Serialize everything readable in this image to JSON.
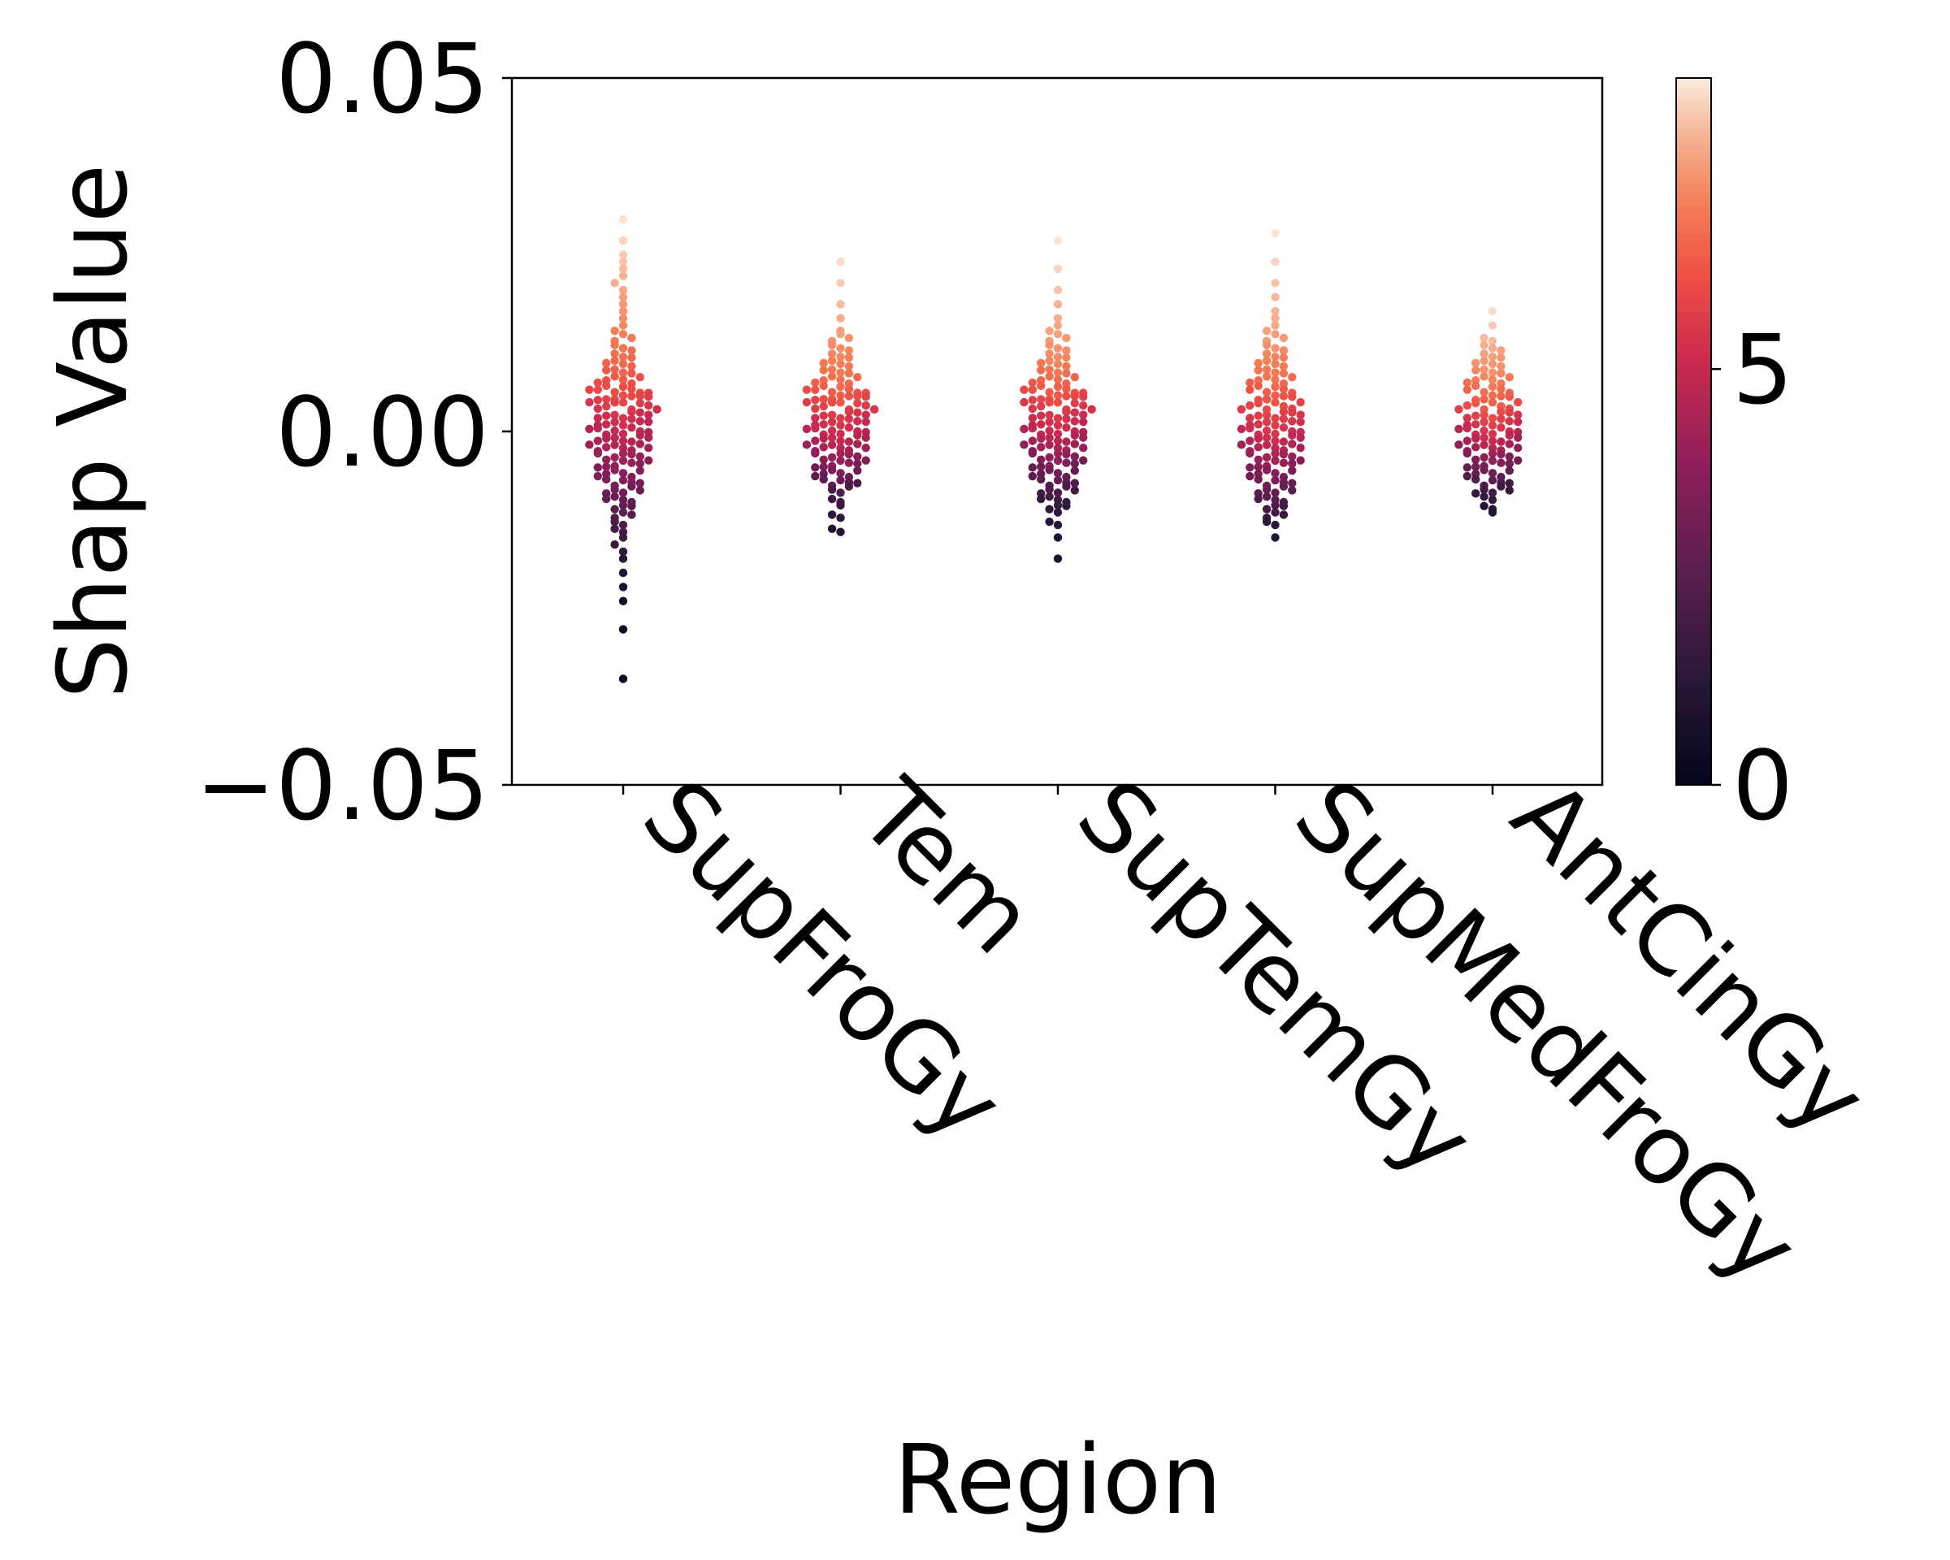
{
  "chart_data": {
    "type": "scatter",
    "style": "swarm",
    "xlabel": "Region",
    "ylabel": "Shap Value",
    "ylim": [
      -0.05,
      0.05
    ],
    "yticks": [
      "0.05",
      "0.00",
      "−0.05"
    ],
    "yticks_values": [
      0.05,
      0.0,
      -0.05
    ],
    "categories": [
      "SupFroGy",
      "Tem",
      "SupTemGy",
      "SupMedFroGy",
      "AntCinGy"
    ],
    "colorbar": {
      "cmap": "rocket",
      "min": 0,
      "max": 8.5,
      "ticks": [
        0,
        5
      ],
      "tick_labels": [
        "0",
        "5"
      ]
    },
    "grid": false,
    "legend": "none",
    "series": [
      {
        "category": "SupFroGy",
        "points": [
          [
            0.03,
            8.4
          ],
          [
            0.027,
            8.2
          ],
          [
            0.025,
            8.1
          ],
          [
            0.024,
            8.0
          ],
          [
            0.023,
            7.9
          ],
          [
            0.022,
            7.8
          ],
          [
            0.021,
            7.7
          ],
          [
            0.02,
            7.6
          ],
          [
            0.019,
            7.5
          ],
          [
            0.018,
            7.4
          ],
          [
            0.017,
            7.3
          ],
          [
            0.016,
            7.2
          ],
          [
            0.015,
            7.1
          ],
          [
            0.014,
            7.0
          ],
          [
            0.013,
            6.9
          ],
          [
            0.012,
            6.8
          ],
          [
            0.011,
            6.7
          ],
          [
            0.01,
            6.6
          ],
          [
            0.009,
            6.5
          ],
          [
            0.008,
            6.3
          ],
          [
            0.007,
            6.1
          ],
          [
            0.006,
            6.0
          ],
          [
            0.005,
            5.9
          ],
          [
            0.005,
            5.8
          ],
          [
            0.004,
            5.6
          ],
          [
            0.003,
            5.4
          ],
          [
            0.002,
            5.2
          ],
          [
            0.001,
            5.0
          ],
          [
            0.0,
            4.8
          ],
          [
            -0.001,
            4.6
          ],
          [
            -0.002,
            4.4
          ],
          [
            -0.003,
            4.2
          ],
          [
            -0.004,
            4.0
          ],
          [
            -0.005,
            3.8
          ],
          [
            -0.006,
            3.6
          ],
          [
            -0.007,
            3.4
          ],
          [
            -0.008,
            3.2
          ],
          [
            -0.009,
            3.0
          ],
          [
            -0.01,
            2.8
          ],
          [
            -0.011,
            2.6
          ],
          [
            -0.012,
            2.4
          ],
          [
            -0.013,
            2.2
          ],
          [
            -0.014,
            2.0
          ],
          [
            -0.015,
            1.8
          ],
          [
            -0.016,
            1.6
          ],
          [
            -0.017,
            1.4
          ],
          [
            -0.018,
            1.2
          ],
          [
            -0.02,
            1.0
          ],
          [
            -0.022,
            0.8
          ],
          [
            -0.024,
            0.6
          ],
          [
            -0.028,
            0.4
          ],
          [
            -0.035,
            0.2
          ]
        ]
      },
      {
        "category": "Tem",
        "points": [
          [
            0.024,
            8.3
          ],
          [
            0.021,
            8.1
          ],
          [
            0.018,
            7.9
          ],
          [
            0.016,
            7.7
          ],
          [
            0.014,
            7.5
          ],
          [
            0.013,
            7.3
          ],
          [
            0.012,
            7.2
          ],
          [
            0.011,
            7.1
          ],
          [
            0.01,
            7.0
          ],
          [
            0.009,
            6.9
          ],
          [
            0.008,
            6.8
          ],
          [
            0.007,
            6.6
          ],
          [
            0.006,
            6.4
          ],
          [
            0.005,
            6.2
          ],
          [
            0.005,
            6.0
          ],
          [
            0.004,
            5.8
          ],
          [
            0.003,
            5.6
          ],
          [
            0.002,
            5.4
          ],
          [
            0.001,
            5.2
          ],
          [
            0.0,
            5.0
          ],
          [
            -0.001,
            4.7
          ],
          [
            -0.002,
            4.4
          ],
          [
            -0.003,
            4.1
          ],
          [
            -0.004,
            3.8
          ],
          [
            -0.005,
            3.4
          ],
          [
            -0.006,
            3.0
          ],
          [
            -0.007,
            2.6
          ],
          [
            -0.008,
            2.2
          ],
          [
            -0.01,
            1.8
          ],
          [
            -0.012,
            1.4
          ],
          [
            -0.014,
            1.0
          ]
        ]
      },
      {
        "category": "SupTemGy",
        "points": [
          [
            0.027,
            8.4
          ],
          [
            0.023,
            8.2
          ],
          [
            0.02,
            8.0
          ],
          [
            0.018,
            7.8
          ],
          [
            0.016,
            7.7
          ],
          [
            0.015,
            7.6
          ],
          [
            0.014,
            7.5
          ],
          [
            0.013,
            7.4
          ],
          [
            0.012,
            7.3
          ],
          [
            0.011,
            7.2
          ],
          [
            0.01,
            7.1
          ],
          [
            0.009,
            6.9
          ],
          [
            0.008,
            6.7
          ],
          [
            0.007,
            6.5
          ],
          [
            0.006,
            6.3
          ],
          [
            0.005,
            6.1
          ],
          [
            0.005,
            5.9
          ],
          [
            0.004,
            5.7
          ],
          [
            0.003,
            5.5
          ],
          [
            0.002,
            5.3
          ],
          [
            0.001,
            5.1
          ],
          [
            0.0,
            4.8
          ],
          [
            -0.001,
            4.5
          ],
          [
            -0.002,
            4.2
          ],
          [
            -0.003,
            3.9
          ],
          [
            -0.004,
            3.5
          ],
          [
            -0.005,
            3.1
          ],
          [
            -0.006,
            2.8
          ],
          [
            -0.007,
            2.5
          ],
          [
            -0.008,
            2.2
          ],
          [
            -0.009,
            1.9
          ],
          [
            -0.01,
            1.6
          ],
          [
            -0.011,
            1.4
          ],
          [
            -0.013,
            1.2
          ],
          [
            -0.015,
            1.0
          ],
          [
            -0.018,
            0.8
          ]
        ]
      },
      {
        "category": "SupMedFroGy",
        "points": [
          [
            0.028,
            8.4
          ],
          [
            0.024,
            8.2
          ],
          [
            0.021,
            8.0
          ],
          [
            0.019,
            7.9
          ],
          [
            0.017,
            7.8
          ],
          [
            0.016,
            7.7
          ],
          [
            0.015,
            7.6
          ],
          [
            0.014,
            7.5
          ],
          [
            0.013,
            7.4
          ],
          [
            0.012,
            7.3
          ],
          [
            0.011,
            7.1
          ],
          [
            0.01,
            7.0
          ],
          [
            0.009,
            6.9
          ],
          [
            0.008,
            6.8
          ],
          [
            0.007,
            6.6
          ],
          [
            0.006,
            6.4
          ],
          [
            0.005,
            6.2
          ],
          [
            0.004,
            6.0
          ],
          [
            0.003,
            5.8
          ],
          [
            0.002,
            5.6
          ],
          [
            0.001,
            5.4
          ],
          [
            0.0,
            5.2
          ],
          [
            -0.001,
            4.9
          ],
          [
            -0.002,
            4.6
          ],
          [
            -0.003,
            4.3
          ],
          [
            -0.004,
            4.0
          ],
          [
            -0.005,
            3.7
          ],
          [
            -0.006,
            3.4
          ],
          [
            -0.007,
            3.1
          ],
          [
            -0.008,
            2.8
          ],
          [
            -0.009,
            2.5
          ],
          [
            -0.01,
            2.2
          ],
          [
            -0.011,
            1.9
          ],
          [
            -0.012,
            1.6
          ],
          [
            -0.013,
            1.3
          ],
          [
            -0.015,
            1.0
          ]
        ]
      },
      {
        "category": "AntCinGy",
        "points": [
          [
            0.017,
            8.3
          ],
          [
            0.015,
            8.1
          ],
          [
            0.013,
            7.9
          ],
          [
            0.012,
            7.7
          ],
          [
            0.011,
            7.5
          ],
          [
            0.01,
            7.4
          ],
          [
            0.009,
            7.3
          ],
          [
            0.008,
            7.1
          ],
          [
            0.007,
            6.9
          ],
          [
            0.006,
            6.7
          ],
          [
            0.005,
            6.5
          ],
          [
            0.004,
            6.3
          ],
          [
            0.003,
            6.0
          ],
          [
            0.002,
            5.7
          ],
          [
            0.001,
            5.4
          ],
          [
            0.0,
            5.1
          ],
          [
            -0.001,
            4.7
          ],
          [
            -0.002,
            4.3
          ],
          [
            -0.003,
            3.9
          ],
          [
            -0.004,
            3.5
          ],
          [
            -0.005,
            3.1
          ],
          [
            -0.006,
            2.7
          ],
          [
            -0.007,
            2.3
          ],
          [
            -0.008,
            1.9
          ],
          [
            -0.009,
            1.5
          ],
          [
            -0.011,
            1.1
          ]
        ]
      }
    ]
  }
}
